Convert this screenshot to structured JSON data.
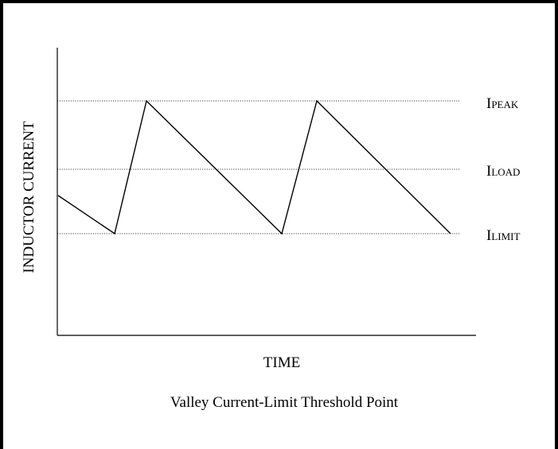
{
  "figure": {
    "y_axis_label": "INDUCTOR CURRENT",
    "x_axis_label": "TIME",
    "caption": "Valley Current-Limit Threshold Point"
  },
  "levels": [
    {
      "key": "peak",
      "base": "I",
      "sub": "PEAK"
    },
    {
      "key": "load",
      "base": "I",
      "sub": "LOAD"
    },
    {
      "key": "limit",
      "base": "I",
      "sub": "LIMIT"
    }
  ],
  "colors": {
    "line": "#000000",
    "background": "#ffffff"
  }
}
